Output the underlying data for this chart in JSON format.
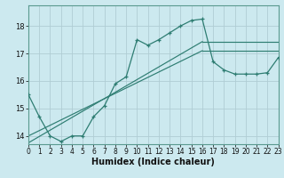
{
  "xlabel": "Humidex (Indice chaleur)",
  "x_values": [
    0,
    1,
    2,
    3,
    4,
    5,
    6,
    7,
    8,
    9,
    10,
    11,
    12,
    13,
    14,
    15,
    16,
    17,
    18,
    19,
    20,
    21,
    22,
    23
  ],
  "main_line": [
    15.5,
    14.7,
    14.0,
    13.8,
    14.0,
    14.0,
    14.7,
    15.1,
    15.9,
    16.15,
    17.5,
    17.3,
    17.5,
    17.75,
    18.0,
    18.2,
    18.25,
    16.7,
    16.4,
    16.25,
    16.25,
    16.25,
    16.3,
    16.85
  ],
  "bg_color": "#cce9ef",
  "grid_color": "#b0cdd4",
  "line_color": "#2e7d72",
  "xlim": [
    0,
    23
  ],
  "ylim": [
    13.7,
    18.75
  ],
  "yticks": [
    14,
    15,
    16,
    17,
    18
  ],
  "xticks": [
    0,
    1,
    2,
    3,
    4,
    5,
    6,
    7,
    8,
    9,
    10,
    11,
    12,
    13,
    14,
    15,
    16,
    17,
    18,
    19,
    20,
    21,
    22,
    23
  ],
  "xlabel_fontsize": 7,
  "tick_fontsize": 5.5
}
